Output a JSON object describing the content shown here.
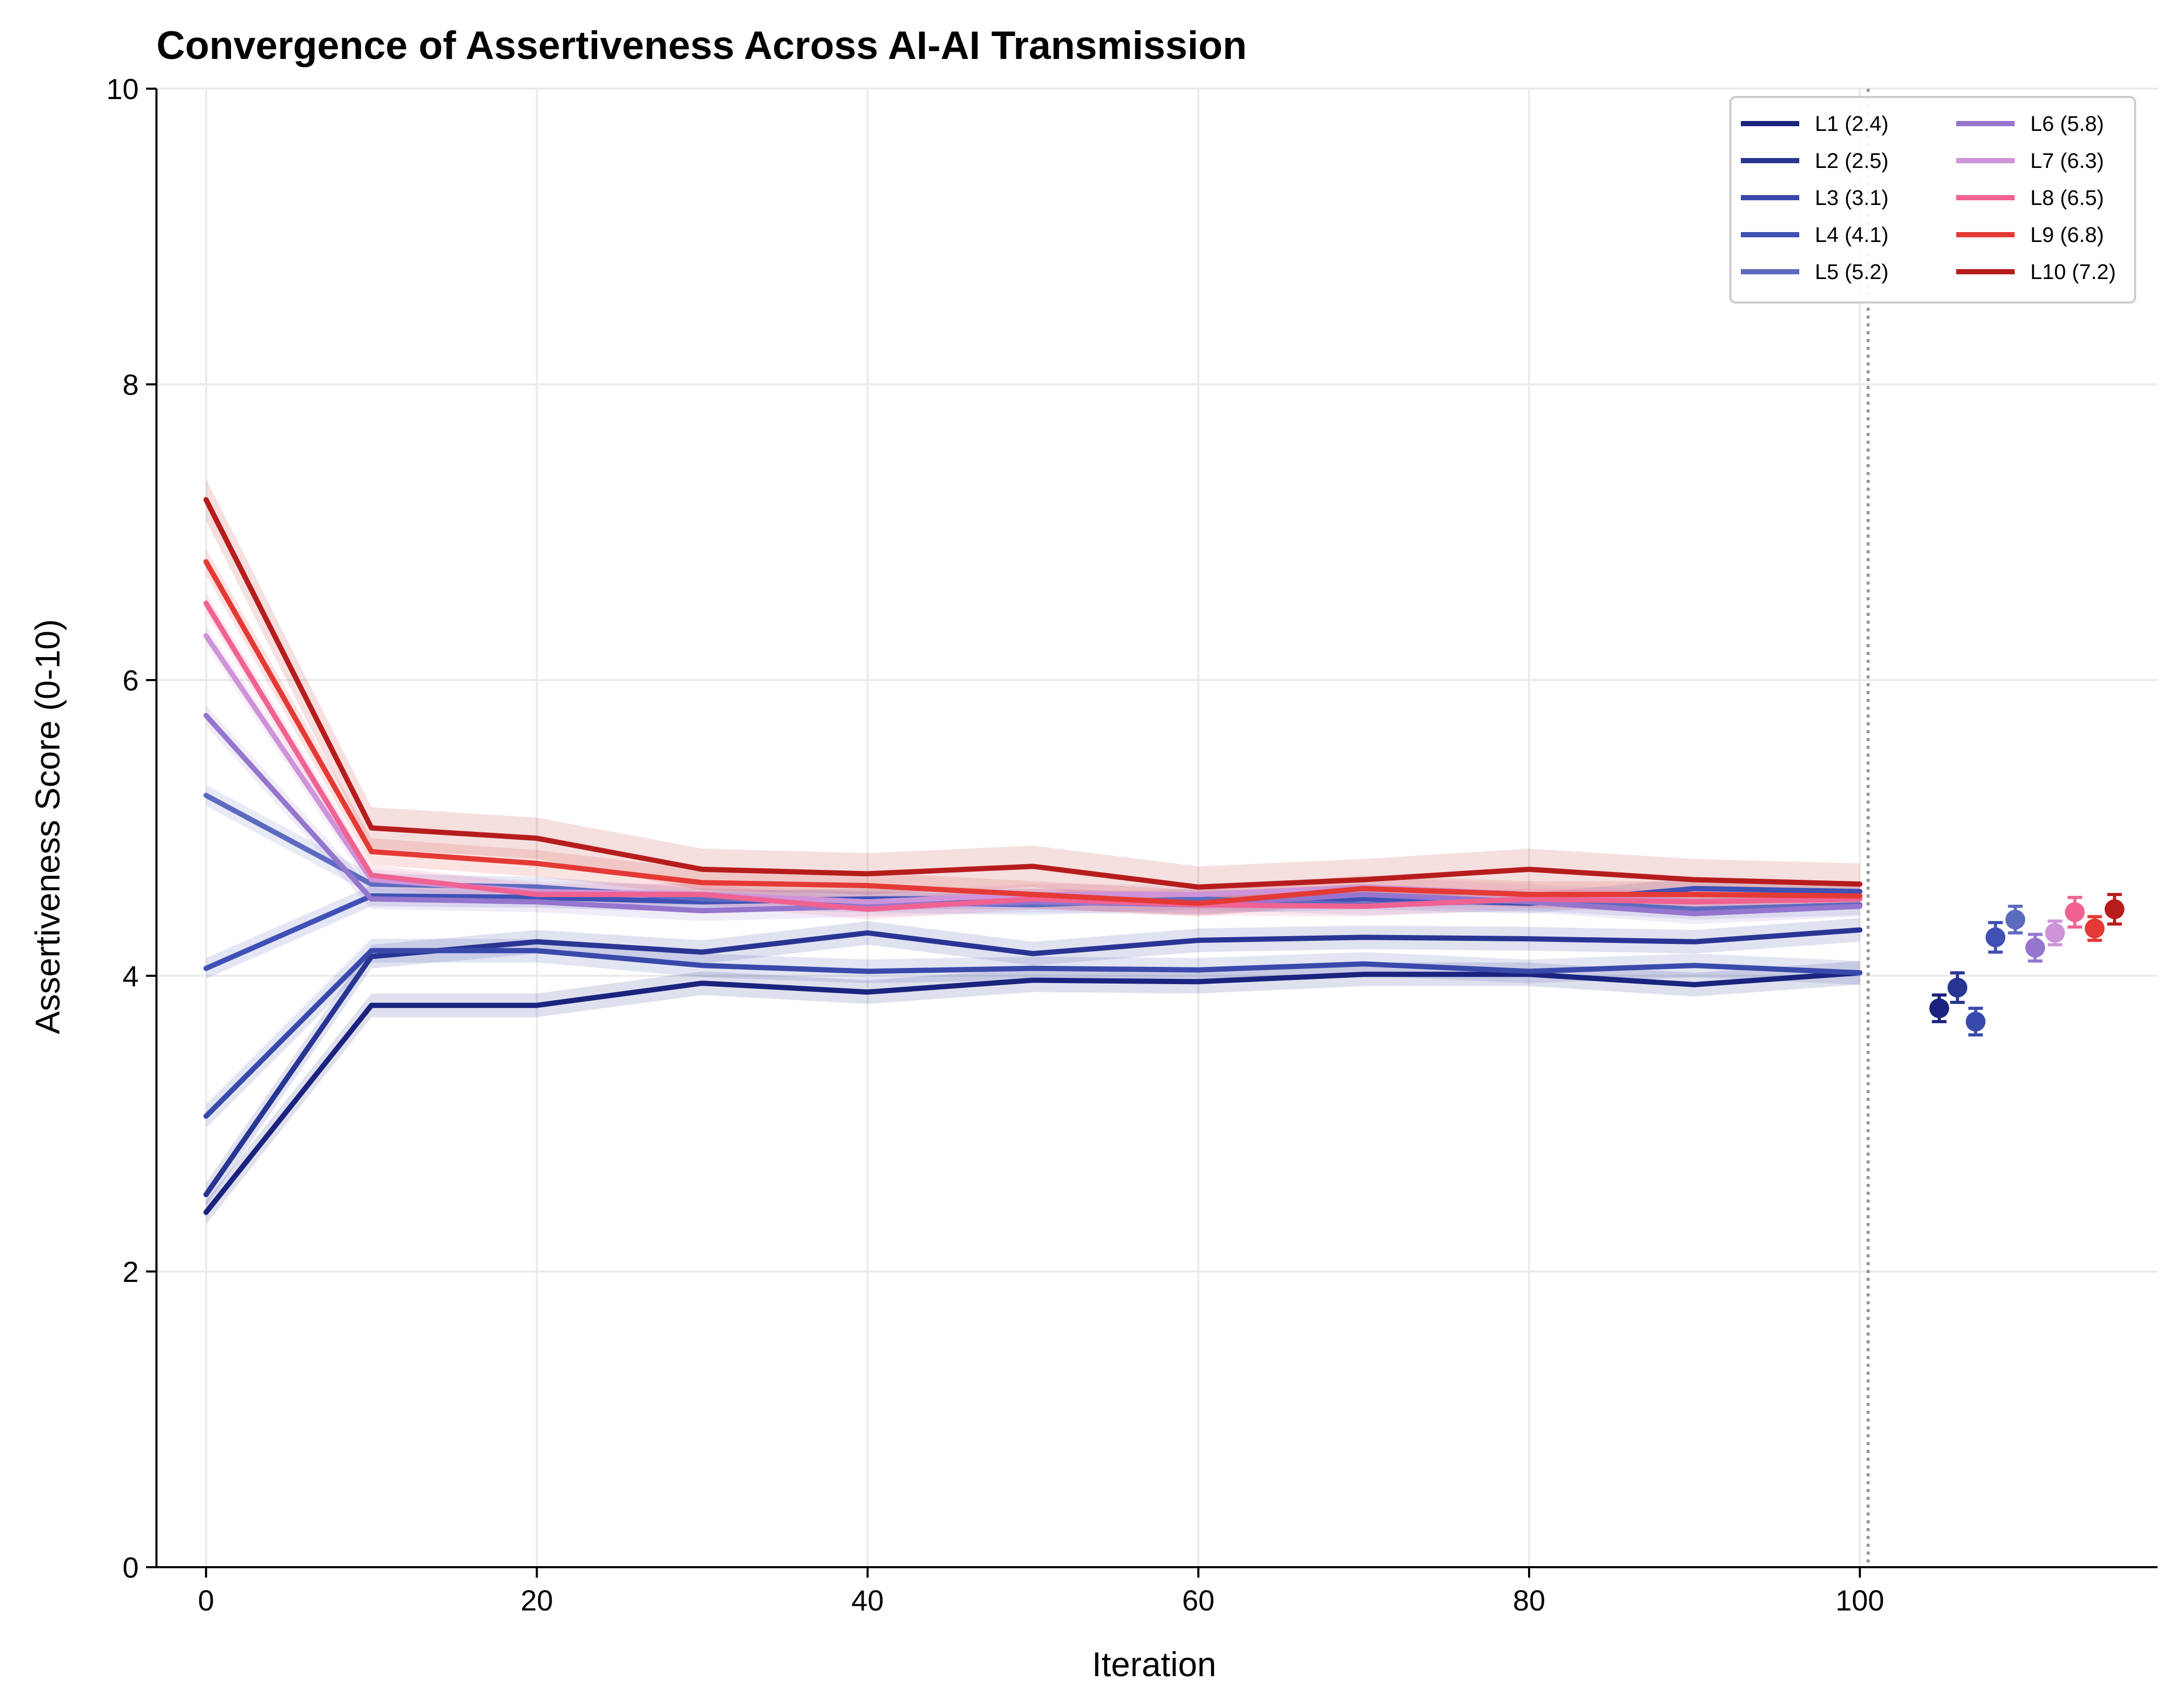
{
  "chart_data": {
    "type": "line",
    "title": "Convergence of Assertiveness Across AI-AI Transmission",
    "xlabel": "Iteration",
    "ylabel": "Assertiveness Score (0-10)",
    "xlim": [
      -3,
      118
    ],
    "ylim": [
      0,
      10
    ],
    "xticks": [
      0,
      20,
      40,
      60,
      80,
      100
    ],
    "xtick_labels": [
      "0",
      "20",
      "40",
      "60",
      "80",
      "100"
    ],
    "yticks": [
      0,
      2,
      4,
      6,
      8,
      10
    ],
    "ytick_labels": [
      "0",
      "2",
      "4",
      "6",
      "8",
      "10"
    ],
    "grid": true,
    "legend_position": "top-right",
    "legend_columns": 2,
    "vertical_marker_x": 100.5,
    "x": [
      0,
      10,
      20,
      30,
      40,
      50,
      60,
      70,
      80,
      90,
      100
    ],
    "series": [
      {
        "name": "L1 (2.4)",
        "color": "#1a237e",
        "values": [
          2.4,
          3.8,
          3.8,
          3.95,
          3.89,
          3.97,
          3.96,
          4.01,
          4.01,
          3.94,
          4.02
        ],
        "band": 0.08,
        "endpoint": {
          "x": 104.8,
          "y": 3.78,
          "err": 0.09
        }
      },
      {
        "name": "L2 (2.5)",
        "color": "#283593",
        "values": [
          2.52,
          4.13,
          4.23,
          4.16,
          4.29,
          4.15,
          4.24,
          4.26,
          4.25,
          4.23,
          4.31
        ],
        "band": 0.08,
        "endpoint": {
          "x": 105.9,
          "y": 3.92,
          "err": 0.1
        }
      },
      {
        "name": "L3 (3.1)",
        "color": "#3949ab",
        "values": [
          3.05,
          4.17,
          4.17,
          4.07,
          4.03,
          4.05,
          4.04,
          4.08,
          4.03,
          4.07,
          4.02
        ],
        "band": 0.08,
        "endpoint": {
          "x": 107.0,
          "y": 3.69,
          "err": 0.09
        }
      },
      {
        "name": "L4 (4.1)",
        "color": "#3f51b5",
        "values": [
          4.05,
          4.54,
          4.53,
          4.5,
          4.52,
          4.52,
          4.49,
          4.52,
          4.49,
          4.59,
          4.57
        ],
        "band": 0.07,
        "endpoint": {
          "x": 108.2,
          "y": 4.26,
          "err": 0.1
        }
      },
      {
        "name": "L5 (5.2)",
        "color": "#5c6bc0",
        "values": [
          5.22,
          4.62,
          4.6,
          4.52,
          4.5,
          4.48,
          4.52,
          4.48,
          4.51,
          4.45,
          4.48
        ],
        "band": 0.07,
        "endpoint": {
          "x": 109.4,
          "y": 4.38,
          "err": 0.09
        }
      },
      {
        "name": "L6 (5.8)",
        "color": "#9575cd",
        "values": [
          5.76,
          4.52,
          4.5,
          4.44,
          4.47,
          4.5,
          4.48,
          4.55,
          4.5,
          4.42,
          4.47
        ],
        "band": 0.07,
        "endpoint": {
          "x": 110.6,
          "y": 4.19,
          "err": 0.09
        }
      },
      {
        "name": "L7 (6.3)",
        "color": "#ce93d8",
        "values": [
          6.3,
          4.65,
          4.57,
          4.55,
          4.5,
          4.55,
          4.55,
          4.6,
          4.55,
          4.5,
          4.52
        ],
        "band": 0.07,
        "endpoint": {
          "x": 111.8,
          "y": 4.29,
          "err": 0.08
        }
      },
      {
        "name": "L8 (6.5)",
        "color": "#f06292",
        "values": [
          6.52,
          4.68,
          4.55,
          4.55,
          4.45,
          4.52,
          4.48,
          4.47,
          4.52,
          4.5,
          4.52
        ],
        "band": 0.07,
        "endpoint": {
          "x": 113.0,
          "y": 4.43,
          "err": 0.1
        }
      },
      {
        "name": "L9 (6.8)",
        "color": "#e53935",
        "values": [
          6.8,
          4.84,
          4.76,
          4.63,
          4.61,
          4.55,
          4.49,
          4.59,
          4.55,
          4.55,
          4.54
        ],
        "band": 0.09,
        "endpoint": {
          "x": 114.2,
          "y": 4.32,
          "err": 0.08
        }
      },
      {
        "name": "L10 (7.2)",
        "color": "#b71c1c",
        "values": [
          7.22,
          5.0,
          4.93,
          4.72,
          4.69,
          4.74,
          4.6,
          4.65,
          4.72,
          4.65,
          4.62
        ],
        "band": 0.14,
        "endpoint": {
          "x": 115.4,
          "y": 4.45,
          "err": 0.1
        }
      }
    ]
  }
}
